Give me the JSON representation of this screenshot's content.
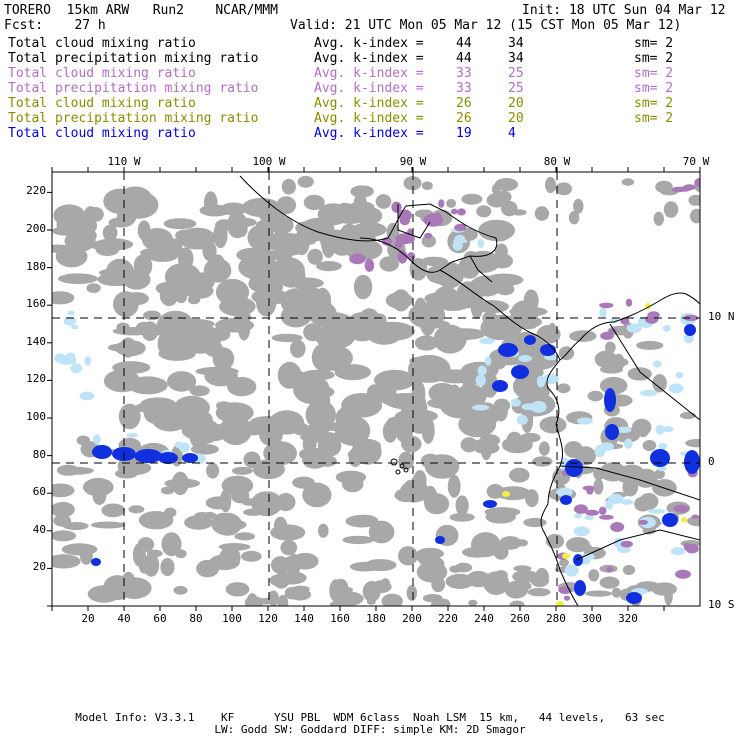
{
  "header": {
    "model": "TORERO  15km ARW   Run2    NCAR/MMM",
    "init": "Init: 18 UTC Sun 04 Mar 12",
    "fcst": "Fcst:    27 h",
    "valid": "Valid: 21 UTC Mon 05 Mar 12 (15 CST Mon 05 Mar 12)"
  },
  "legend": [
    {
      "field": "Total cloud mixing ratio",
      "index_label": "Avg. k-index =",
      "from": "44",
      "to": "34",
      "sm": "sm= 2",
      "color": "#000000"
    },
    {
      "field": "Total precipitation mixing ratio",
      "index_label": "Avg. k-index =",
      "from": "44",
      "to": "34",
      "sm": "sm= 2",
      "color": "#000000"
    },
    {
      "field": "Total cloud mixing ratio",
      "index_label": "Avg. k-index =",
      "from": "33",
      "to": "25",
      "sm": "sm= 2",
      "color": "#b46ec4"
    },
    {
      "field": "Total precipitation mixing ratio",
      "index_label": "Avg. k-index =",
      "from": "33",
      "to": "25",
      "sm": "sm= 2",
      "color": "#b46ec4"
    },
    {
      "field": "Total cloud mixing ratio",
      "index_label": "Avg. k-index =",
      "from": "26",
      "to": "20",
      "sm": "sm= 2",
      "color": "#8c8c00"
    },
    {
      "field": "Total precipitation mixing ratio",
      "index_label": "Avg. k-index =",
      "from": "26",
      "to": "20",
      "sm": "sm= 2",
      "color": "#8c8c00"
    },
    {
      "field": "Total cloud mixing ratio",
      "index_label": "Avg. k-index =",
      "from": "19",
      "to": "4",
      "sm": "",
      "color": "#0000dc"
    }
  ],
  "map": {
    "lon_labels": [
      "110 W",
      "100 W",
      "90 W",
      "80 W",
      "70 W"
    ],
    "lat_labels": [
      "10 N",
      "0",
      "10 S"
    ],
    "y_ticks": [
      "220",
      "200",
      "180",
      "160",
      "140",
      "120",
      "100",
      "80",
      "60",
      "40",
      "20"
    ],
    "x_ticks": [
      "20",
      "40",
      "60",
      "80",
      "100",
      "120",
      "140",
      "160",
      "180",
      "200",
      "220",
      "240",
      "260",
      "280",
      "300",
      "320"
    ],
    "colors": {
      "gray": "#a8a8a8",
      "light_blue": "#bfe4f8",
      "blue": "#1030e0",
      "purple": "#a878b8",
      "yellow": "#f0f040"
    }
  },
  "footer": {
    "line1": "Model Info: V3.3.1    KF      YSU PBL  WDM 6class  Noah LSM  15 km,   44 levels,   63 sec",
    "line2": "LW: Godd SW: Goddard DIFF: simple KM: 2D Smagor"
  }
}
